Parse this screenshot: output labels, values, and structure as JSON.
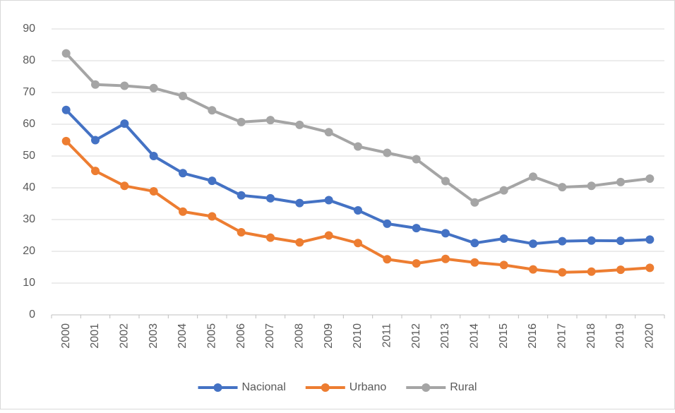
{
  "chart_data": {
    "type": "line",
    "categories": [
      "2000",
      "2001",
      "2002",
      "2003",
      "2004",
      "2005",
      "2006",
      "2007",
      "2008",
      "2009",
      "2010",
      "2011",
      "2012",
      "2013",
      "2014",
      "2015",
      "2016",
      "2017",
      "2018",
      "2019",
      "2020"
    ],
    "series": [
      {
        "name": "Nacional",
        "color": "#4472c4",
        "values": [
          64.5,
          55,
          60.2,
          50,
          44.6,
          42.2,
          37.6,
          36.7,
          35.2,
          36.1,
          32.9,
          28.7,
          27.3,
          25.7,
          22.6,
          24,
          22.4,
          23.2,
          23.4,
          23.3,
          23.7
        ]
      },
      {
        "name": "Urbano",
        "color": "#ed7d31",
        "values": [
          54.7,
          45.3,
          40.6,
          38.9,
          32.5,
          31,
          26,
          24.3,
          22.8,
          25,
          22.6,
          17.5,
          16.2,
          17.6,
          16.5,
          15.7,
          14.3,
          13.4,
          13.6,
          14.2,
          14.8
        ]
      },
      {
        "name": "Rural",
        "color": "#a5a5a5",
        "values": [
          82.3,
          72.5,
          72.1,
          71.4,
          68.9,
          64.4,
          60.7,
          61.3,
          59.8,
          57.5,
          53,
          51,
          49,
          42.1,
          35.4,
          39.2,
          43.5,
          40.2,
          40.6,
          41.8,
          42.9
        ]
      }
    ],
    "ylim": [
      0,
      90
    ],
    "yticks": [
      0,
      10,
      20,
      30,
      40,
      50,
      60,
      70,
      80,
      90
    ],
    "grid": true,
    "legend": "bottom"
  }
}
